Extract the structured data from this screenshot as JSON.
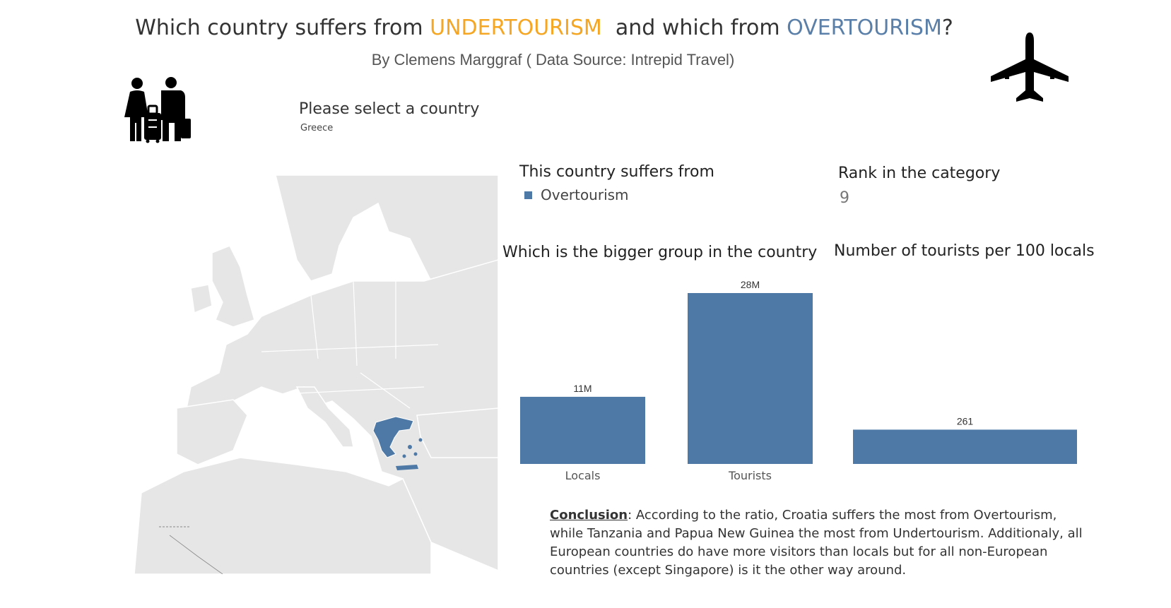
{
  "header": {
    "title_prefix": "Which country suffers from ",
    "title_under": "UNDERTOURISM",
    "title_middle": "  and which from ",
    "title_over": "OVERTOURISM",
    "title_suffix": "?",
    "subtitle": "By Clemens Marggraf ( Data Source: Intrepid Travel)",
    "colors": {
      "under": "#f5a623",
      "over": "#5a7fa8"
    }
  },
  "selector": {
    "label": "Please select a country",
    "value": "Greece"
  },
  "icons": {
    "left": "family-luggage-icon",
    "right": "airplane-icon"
  },
  "category": {
    "label": "This country suffers from",
    "legend_entry": "Overtourism",
    "legend_color": "#4e79a7"
  },
  "rank": {
    "label": "Rank in the category",
    "value": "9"
  },
  "chart_data": [
    {
      "type": "bar",
      "title": "Which is the bigger group in the country",
      "categories": [
        "Locals",
        "Tourists"
      ],
      "values": [
        11,
        28
      ],
      "value_labels": [
        "11M",
        "28M"
      ],
      "unit": "M",
      "ylim": [
        0,
        28
      ],
      "grid": false,
      "color": "#4e79a7"
    },
    {
      "type": "bar",
      "title": "Number of tourists per 100 locals",
      "categories": [
        ""
      ],
      "values": [
        261
      ],
      "value_labels": [
        "261"
      ],
      "ylim": [
        0,
        1300
      ],
      "grid": false,
      "color": "#4e79a7"
    }
  ],
  "conclusion": {
    "heading": "Conclusion",
    "text": ": According to the ratio, Croatia suffers the most from Overtourism, while Tanzania and Papua New Guinea the most from Undertourism. Additionaly, all European countries do have more visitors than locals but for all non-European countries   (except Singapore) is it the other way around."
  },
  "map": {
    "highlighted_country": "Greece",
    "highlight_color": "#4e79a7",
    "base_color": "#e6e6e6"
  }
}
